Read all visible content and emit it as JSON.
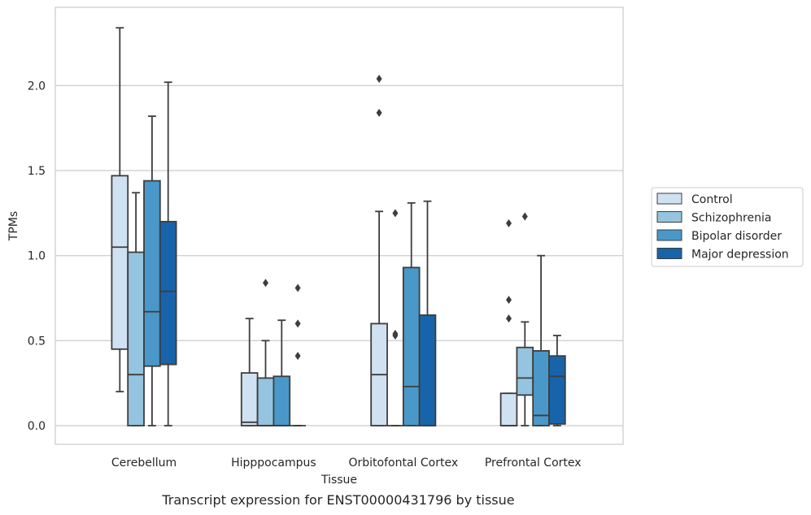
{
  "chart_data": {
    "type": "box",
    "xlabel": "Tissue",
    "ylabel": "TPMs",
    "caption": "Transcript expression for ENST00000431796 by tissue",
    "ylim": [
      -0.11,
      2.46
    ],
    "yticks": [
      0.0,
      0.5,
      1.0,
      1.5,
      2.0
    ],
    "ytick_labels": [
      "0.0",
      "0.5",
      "1.0",
      "1.5",
      "2.0"
    ],
    "grid": "horizontal",
    "legend_position": "right",
    "categories": [
      "Cerebellum",
      "Hipppocampus",
      "Orbitofontal Cortex",
      "Prefrontal Cortex"
    ],
    "series": [
      {
        "name": "Control",
        "color": "#d0e1f2",
        "boxes": [
          {
            "whislo": 0.2,
            "q1": 0.45,
            "med": 1.05,
            "q3": 1.47,
            "whishi": 2.34,
            "fliers": []
          },
          {
            "whislo": 0.0,
            "q1": 0.0,
            "med": 0.02,
            "q3": 0.31,
            "whishi": 0.63,
            "fliers": []
          },
          {
            "whislo": 0.0,
            "q1": 0.0,
            "med": 0.3,
            "q3": 0.6,
            "whishi": 1.26,
            "fliers": [
              1.84,
              2.04
            ]
          },
          {
            "whislo": 0.0,
            "q1": 0.0,
            "med": 0.0,
            "q3": 0.19,
            "whishi": 0.19,
            "fliers": [
              0.63,
              0.74,
              1.19
            ]
          }
        ]
      },
      {
        "name": "Schizophrenia",
        "color": "#94c4df",
        "boxes": [
          {
            "whislo": 0.0,
            "q1": 0.0,
            "med": 0.3,
            "q3": 1.02,
            "whishi": 1.37,
            "fliers": []
          },
          {
            "whislo": 0.0,
            "q1": 0.0,
            "med": 0.0,
            "q3": 0.28,
            "whishi": 0.5,
            "fliers": [
              0.84
            ]
          },
          {
            "whislo": 0.0,
            "q1": 0.0,
            "med": 0.0,
            "q3": 0.0,
            "whishi": 0.0,
            "fliers": [
              0.53,
              0.54,
              1.25
            ]
          },
          {
            "whislo": 0.0,
            "q1": 0.18,
            "med": 0.28,
            "q3": 0.46,
            "whishi": 0.61,
            "fliers": [
              1.23
            ]
          }
        ]
      },
      {
        "name": "Bipolar disorder",
        "color": "#4a98c9",
        "boxes": [
          {
            "whislo": 0.0,
            "q1": 0.35,
            "med": 0.67,
            "q3": 1.44,
            "whishi": 1.82,
            "fliers": []
          },
          {
            "whislo": 0.0,
            "q1": 0.0,
            "med": 0.0,
            "q3": 0.29,
            "whishi": 0.62,
            "fliers": []
          },
          {
            "whislo": 0.0,
            "q1": 0.0,
            "med": 0.23,
            "q3": 0.93,
            "whishi": 1.31,
            "fliers": []
          },
          {
            "whislo": 0.0,
            "q1": 0.0,
            "med": 0.06,
            "q3": 0.44,
            "whishi": 1.0,
            "fliers": []
          }
        ]
      },
      {
        "name": "Major depression",
        "color": "#1764ab",
        "boxes": [
          {
            "whislo": 0.0,
            "q1": 0.36,
            "med": 0.79,
            "q3": 1.2,
            "whishi": 2.02,
            "fliers": []
          },
          {
            "whislo": 0.0,
            "q1": 0.0,
            "med": 0.0,
            "q3": 0.0,
            "whishi": 0.0,
            "fliers": [
              0.41,
              0.6,
              0.81
            ]
          },
          {
            "whislo": 0.0,
            "q1": 0.0,
            "med": 0.0,
            "q3": 0.65,
            "whishi": 1.32,
            "fliers": []
          },
          {
            "whislo": 0.0,
            "q1": 0.01,
            "med": 0.29,
            "q3": 0.41,
            "whishi": 0.53,
            "fliers": []
          }
        ]
      }
    ]
  }
}
